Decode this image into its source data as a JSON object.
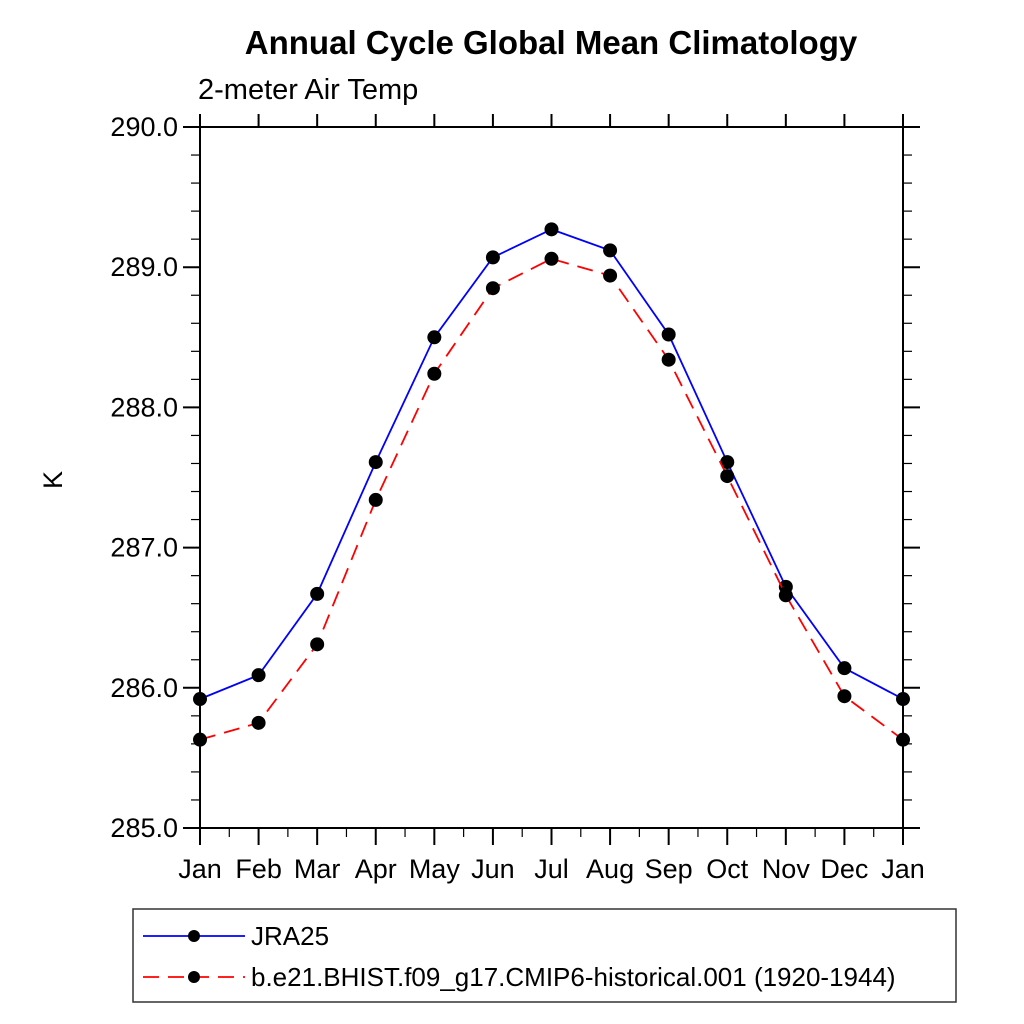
{
  "page": {
    "background": "#ffffff"
  },
  "chart_data": {
    "type": "line",
    "title": "Annual Cycle Global Mean Climatology",
    "subtitle": "2-meter Air Temp",
    "xlabel": "",
    "ylabel": "K",
    "categories": [
      "Jan",
      "Feb",
      "Mar",
      "Apr",
      "May",
      "Jun",
      "Jul",
      "Aug",
      "Sep",
      "Oct",
      "Nov",
      "Dec",
      "Jan"
    ],
    "ylim": [
      285.0,
      290.0
    ],
    "y_major_tick_labels": [
      "285.0",
      "286.0",
      "287.0",
      "288.0",
      "289.0",
      "290.0"
    ],
    "y_major_step": 1.0,
    "y_minor_step": 0.2,
    "x_minor_ticks": "half-month",
    "grid": false,
    "frame": "box-with-outward-ticks",
    "legend_position": "bottom-left-box",
    "colors": {
      "axis": "#000000",
      "text": "#000000",
      "legend_border": "#333333"
    },
    "series": [
      {
        "name": "JRA25",
        "color": "#0000ff",
        "line_style": "solid",
        "marker": "filled-circle",
        "marker_color": "#000000",
        "values": [
          285.92,
          286.09,
          286.67,
          287.61,
          288.5,
          289.07,
          289.27,
          289.12,
          288.52,
          287.61,
          286.72,
          286.14,
          285.92
        ]
      },
      {
        "name": "b.e21.BHIST.f09_g17.CMIP6-historical.001 (1920-1944)",
        "color": "#ff0000",
        "line_style": "dashed",
        "marker": "filled-circle",
        "marker_color": "#000000",
        "values": [
          285.63,
          285.75,
          286.31,
          287.34,
          288.24,
          288.85,
          289.06,
          288.94,
          288.34,
          287.51,
          286.66,
          285.94,
          285.63
        ]
      }
    ]
  }
}
